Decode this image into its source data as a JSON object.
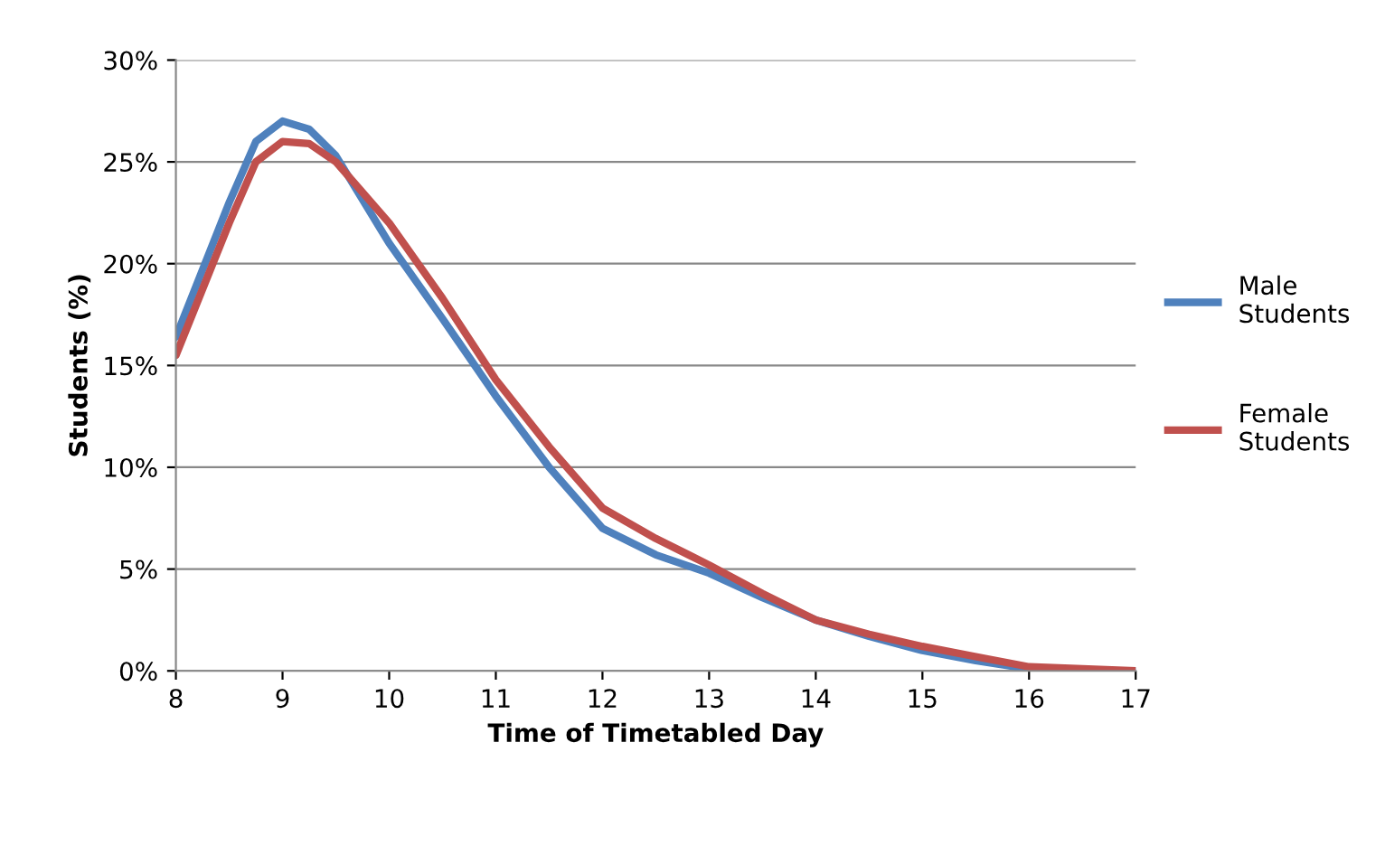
{
  "chart_data": {
    "type": "line",
    "xlabel": "Time of Timetabled Day",
    "ylabel": "Students (%)",
    "x": [
      8,
      8.5,
      8.75,
      9,
      9.25,
      9.5,
      10,
      10.5,
      11,
      11.5,
      12,
      12.5,
      13,
      13.5,
      14,
      14.5,
      15,
      15.5,
      16,
      16.5,
      17
    ],
    "series": [
      {
        "name": "Male Students",
        "color": "#4f81bd",
        "values": [
          16.4,
          23,
          26,
          27,
          26.6,
          25.3,
          21,
          17.3,
          13.5,
          10,
          7,
          5.7,
          4.8,
          3.6,
          2.5,
          1.7,
          1,
          0.5,
          0.1,
          0,
          0
        ]
      },
      {
        "name": "Female Students",
        "color": "#c0504d",
        "values": [
          15.5,
          22,
          25,
          26,
          25.9,
          25,
          22,
          18.3,
          14.3,
          11,
          8,
          6.5,
          5.2,
          3.8,
          2.5,
          1.8,
          1.2,
          0.7,
          0.2,
          0.1,
          0
        ]
      }
    ],
    "xlim": [
      8,
      17
    ],
    "xticks": [
      8,
      9,
      10,
      11,
      12,
      13,
      14,
      15,
      16,
      17
    ],
    "ylim": [
      0,
      30
    ],
    "yticks": [
      {
        "value": 0,
        "label": "0%"
      },
      {
        "value": 5,
        "label": "5%"
      },
      {
        "value": 10,
        "label": "10%"
      },
      {
        "value": 15,
        "label": "15%"
      },
      {
        "value": 20,
        "label": "20%"
      },
      {
        "value": 25,
        "label": "25%"
      },
      {
        "value": 30,
        "label": "30%"
      }
    ],
    "grid": "y",
    "legend": "right",
    "marker": "none",
    "line_style": "solid"
  }
}
